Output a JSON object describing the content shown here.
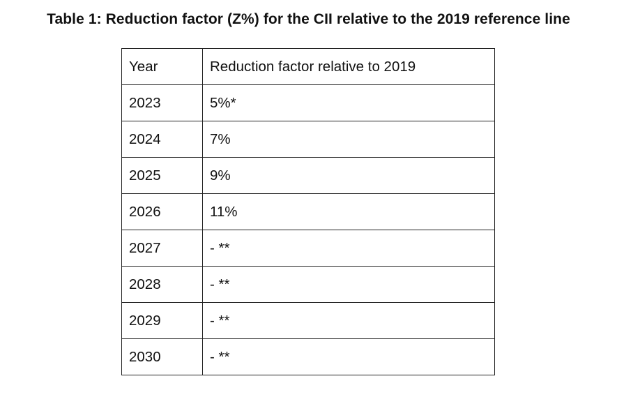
{
  "title": "Table 1: Reduction factor (Z%) for the CII relative to the 2019 reference line",
  "table": {
    "headers": [
      "Year",
      "Reduction factor relative to 2019"
    ],
    "rows": [
      [
        "2023",
        "5%*"
      ],
      [
        "2024",
        "7%"
      ],
      [
        "2025",
        "9%"
      ],
      [
        "2026",
        "11%"
      ],
      [
        "2027",
        "- **"
      ],
      [
        "2028",
        "- **"
      ],
      [
        "2029",
        "- **"
      ],
      [
        "2030",
        "- **"
      ]
    ]
  }
}
